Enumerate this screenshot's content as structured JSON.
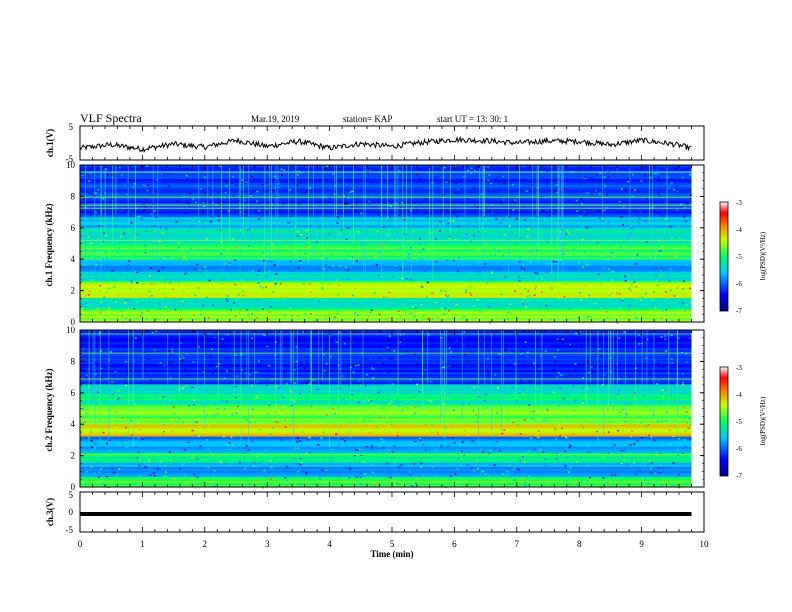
{
  "header": {
    "title": "VLF Spectra",
    "date": "Mar.19, 2019",
    "station": "station= KAP",
    "start_time": "start  UT =  13: 30: 1"
  },
  "colorbar": {
    "label": "log(PSD)(V²/Hz)",
    "ticks": [
      "-3",
      "-4",
      "-5",
      "-6",
      "-7"
    ]
  },
  "chart_data": [
    {
      "type": "line",
      "panel": "ch1-waveform",
      "ylabel": "ch.1(V)",
      "ylim": [
        -5,
        5
      ],
      "yticks": [
        "5",
        "-5"
      ],
      "x": [
        0.0,
        0.5,
        1.0,
        1.5,
        2.0,
        2.5,
        3.0,
        3.5,
        4.0,
        4.5,
        5.0,
        5.5,
        6.0,
        6.5,
        7.0,
        7.5,
        8.0,
        8.5,
        9.0,
        9.5,
        9.8
      ],
      "y": [
        -1.5,
        -0.5,
        -1.8,
        -0.3,
        -1.2,
        0.8,
        -1.0,
        0.5,
        -1.5,
        -0.2,
        -1.0,
        0.2,
        1.0,
        0.7,
        0.0,
        0.6,
        0.5,
        -0.5,
        0.8,
        -0.3,
        -1.5
      ]
    },
    {
      "type": "heatmap",
      "panel": "ch1-spectrogram",
      "ylabel": "ch.1 Frequency (kHz)",
      "ylim": [
        0,
        10
      ],
      "yticks": [
        "0",
        "2",
        "4",
        "6",
        "8",
        "10"
      ]
    },
    {
      "type": "heatmap",
      "panel": "ch2-spectrogram",
      "ylabel": "ch.2 Frequency (kHz)",
      "ylim": [
        0,
        10
      ],
      "yticks": [
        "0",
        "2",
        "4",
        "6",
        "8",
        "10"
      ]
    },
    {
      "type": "line",
      "panel": "ch3-waveform",
      "ylabel": "ch.3(V)",
      "ylim": [
        -5,
        5
      ],
      "yticks": [
        "5",
        "0",
        "-5"
      ],
      "x": [
        0,
        9.8
      ],
      "y": [
        -0.5,
        -0.5
      ]
    }
  ],
  "xaxis": {
    "label": "Time  (min)",
    "xlim": [
      0,
      10
    ],
    "ticks": [
      "0",
      "1",
      "2",
      "3",
      "4",
      "5",
      "6",
      "7",
      "8",
      "9",
      "10"
    ]
  }
}
